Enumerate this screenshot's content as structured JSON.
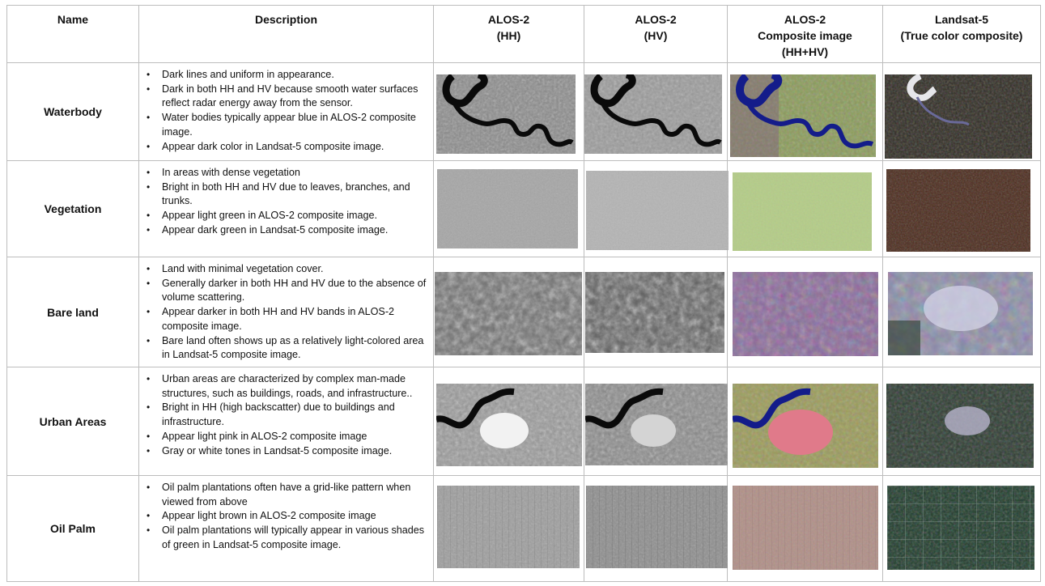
{
  "headers": {
    "name": "Name",
    "description": "Description",
    "hh": [
      "ALOS-2",
      "(HH)"
    ],
    "hv": [
      "ALOS-2",
      "(HV)"
    ],
    "composite": [
      "ALOS-2",
      "Composite image",
      "(HH+HV)"
    ],
    "landsat": [
      "Landsat-5",
      "(True color composite)"
    ]
  },
  "rows": [
    {
      "name": "Waterbody",
      "bullets": [
        "Dark lines and uniform in appearance.",
        "Dark in both HH and HV because smooth water surfaces reflect radar energy away from the sensor.",
        "Water bodies typically appear blue in  ALOS-2 composite image.",
        "Appear dark color in Landsat-5 composite image."
      ]
    },
    {
      "name": "Vegetation",
      "bullets": [
        "In areas with dense vegetation",
        "Bright in both HH and HV due to leaves, branches, and trunks.",
        "Appear light green in ALOS-2 composite image.",
        "Appear dark green in Landsat-5 composite image."
      ]
    },
    {
      "name": "Bare land",
      "bullets": [
        "Land with minimal vegetation cover.",
        "Generally darker in both HH and HV due to the absence of volume scattering.",
        "Appear darker in both HH and HV bands in  ALOS-2 composite image.",
        "Bare land often shows up as a relatively light-colored area in Landsat-5 composite image."
      ]
    },
    {
      "name": "Urban Areas",
      "bullets": [
        "Urban areas are characterized by complex man-made structures, such as buildings, roads, and infrastructure..",
        "Bright in HH (high backscatter) due to buildings and infrastructure.",
        "Appear light pink  in ALOS-2 composite image",
        "Gray or white tones in Landsat-5 composite image."
      ]
    },
    {
      "name": "Oil Palm",
      "bullets": [
        "Oil palm plantations often have a grid-like pattern when viewed from above",
        "Appear light brown  in ALOS-2 composite image",
        "Oil palm plantations will typically appear in various shades of green in Landsat-5 composite image."
      ]
    }
  ],
  "image_colors": {
    "hh_base": "#8a8a8a",
    "hv_base": "#9a9a9a",
    "composite_waterbody": "#8a9a5a",
    "composite_vegetation": "#b4cc88",
    "composite_bare": "#8a6a9a",
    "composite_urban": "#c07a8a",
    "composite_oilpalm": "#b09088",
    "landsat_dark": "#2e2a22",
    "landsat_vegetation": "#4a2a1c",
    "landsat_bare": "#8a8aa6",
    "water_dark": "#0a0a0a",
    "water_blue": "#141c8a"
  }
}
